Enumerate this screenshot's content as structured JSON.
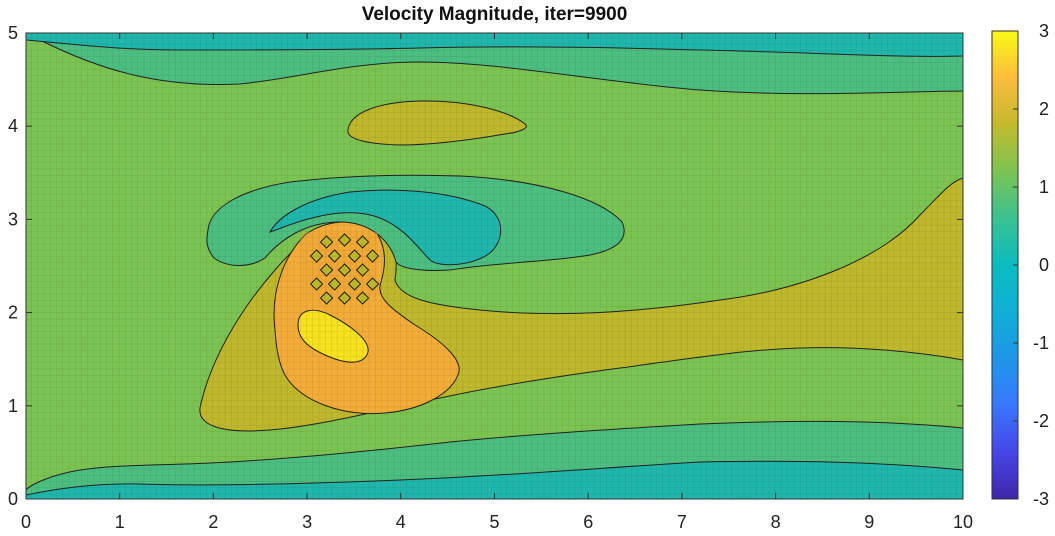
{
  "chart_data": {
    "type": "heatmap",
    "title": "Velocity Magnitude, iter=9900",
    "xlabel": "",
    "ylabel": "",
    "xlim": [
      0,
      10
    ],
    "ylim": [
      0,
      5
    ],
    "x_ticks": [
      0,
      1,
      2,
      3,
      4,
      5,
      6,
      7,
      8,
      9,
      10
    ],
    "y_ticks": [
      0,
      1,
      2,
      3,
      4,
      5
    ],
    "grid": true,
    "colorbar": {
      "limits": [
        -3,
        3
      ],
      "ticks": [
        -3,
        -2,
        -1,
        0,
        1,
        2,
        3
      ],
      "colormap": "parula"
    },
    "contour_levels": [
      0,
      0.5,
      1,
      1.5,
      2,
      2.5
    ],
    "level_colors": {
      "0-0.5": "#1fb6ac",
      "0.5-1": "#4cbe80",
      "1-1.5": "#7cc452",
      "1.5-2": "#c0b82c",
      "2-2.5": "#f4ac38",
      "2.5-3": "#f6e21e"
    },
    "features": [
      {
        "kind": "obstacle",
        "center": [
          3.4,
          2.5
        ]
      },
      {
        "kind": "vortex",
        "center": [
          4.3,
          2.8
        ],
        "value_range": "0-0.5"
      },
      {
        "kind": "vortex",
        "center": [
          4.8,
          4.0
        ],
        "value_range": "1.5-2"
      },
      {
        "kind": "high-speed region",
        "center": [
          3.3,
          1.5
        ],
        "value_range": "2.5-3"
      }
    ]
  }
}
